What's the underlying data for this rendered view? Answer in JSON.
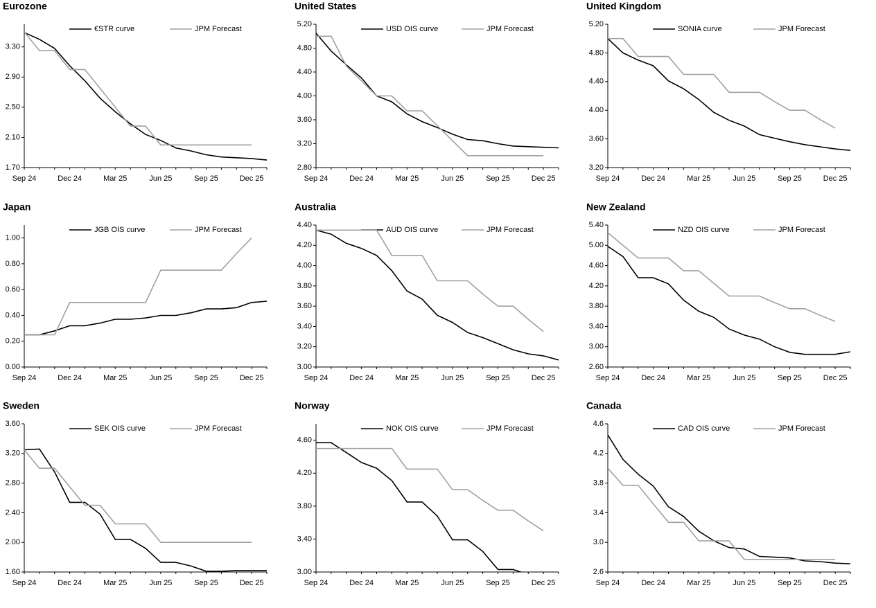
{
  "chart_data": [
    {
      "type": "line",
      "title": "Eurozone",
      "categories": [
        "Sep 24",
        null,
        null,
        "Dec 24",
        null,
        null,
        "Mar 25",
        null,
        null,
        "Jun 25",
        null,
        null,
        "Sep 25",
        null,
        null,
        "Dec 25",
        null
      ],
      "ylim": [
        1.7,
        3.6
      ],
      "yticks": [
        {
          "value": 1.7,
          "label": "1.70"
        },
        {
          "value": 2.1,
          "label": "2.10"
        },
        {
          "value": 2.5,
          "label": "2.50"
        },
        {
          "value": 2.9,
          "label": "2.90"
        },
        {
          "value": 3.3,
          "label": "3.30"
        }
      ],
      "series": [
        {
          "name": "€STR curve",
          "color": "#000000",
          "values": [
            3.49,
            3.4,
            3.28,
            3.05,
            2.85,
            2.62,
            2.44,
            2.28,
            2.14,
            2.06,
            1.96,
            1.92,
            1.87,
            1.84,
            1.83,
            1.82,
            1.8
          ]
        },
        {
          "name": "JPM Forecast",
          "color": "#a0a0a0",
          "values": [
            3.5,
            3.25,
            3.25,
            3.0,
            3.0,
            2.75,
            2.5,
            2.25,
            2.25,
            2.0,
            2.0,
            2.0,
            2.0,
            2.0,
            2.0,
            2.0,
            null
          ]
        }
      ]
    },
    {
      "type": "line",
      "title": "United States",
      "categories": [
        "Sep 24",
        null,
        null,
        "Dec 24",
        null,
        null,
        "Mar 25",
        null,
        null,
        "Jun 25",
        null,
        null,
        "Sep 25",
        null,
        null,
        "Dec 25",
        null
      ],
      "ylim": [
        2.8,
        5.2
      ],
      "yticks": [
        {
          "value": 2.8,
          "label": "2.80"
        },
        {
          "value": 3.2,
          "label": "3.20"
        },
        {
          "value": 3.6,
          "label": "3.60"
        },
        {
          "value": 4.0,
          "label": "4.00"
        },
        {
          "value": 4.4,
          "label": "4.40"
        },
        {
          "value": 4.8,
          "label": "4.80"
        },
        {
          "value": 5.2,
          "label": "5.20"
        }
      ],
      "series": [
        {
          "name": "USD OIS curve",
          "color": "#000000",
          "values": [
            5.05,
            4.75,
            4.52,
            4.3,
            4.0,
            3.9,
            3.7,
            3.57,
            3.47,
            3.36,
            3.27,
            3.25,
            3.2,
            3.16,
            3.15,
            3.14,
            3.13
          ]
        },
        {
          "name": "JPM Forecast",
          "color": "#a0a0a0",
          "values": [
            5.0,
            5.0,
            4.5,
            4.25,
            4.0,
            4.0,
            3.75,
            3.75,
            3.5,
            3.25,
            3.0,
            3.0,
            3.0,
            3.0,
            3.0,
            3.0,
            null
          ]
        }
      ]
    },
    {
      "type": "line",
      "title": "United Kingdom",
      "categories": [
        "Sep 24",
        null,
        null,
        "Dec 24",
        null,
        null,
        "Mar 25",
        null,
        null,
        "Jun 25",
        null,
        null,
        "Sep 25",
        null,
        null,
        "Dec 25",
        null
      ],
      "ylim": [
        3.2,
        5.2
      ],
      "yticks": [
        {
          "value": 3.2,
          "label": "3.20"
        },
        {
          "value": 3.6,
          "label": "3.60"
        },
        {
          "value": 4.0,
          "label": "4.00"
        },
        {
          "value": 4.4,
          "label": "4.40"
        },
        {
          "value": 4.8,
          "label": "4.80"
        },
        {
          "value": 5.2,
          "label": "5.20"
        }
      ],
      "series": [
        {
          "name": "SONIA curve",
          "color": "#000000",
          "values": [
            5.0,
            4.8,
            4.7,
            4.62,
            4.41,
            4.3,
            4.15,
            3.97,
            3.86,
            3.78,
            3.66,
            3.61,
            3.56,
            3.52,
            3.49,
            3.46,
            3.44
          ]
        },
        {
          "name": "JPM Forecast",
          "color": "#a0a0a0",
          "values": [
            5.0,
            5.0,
            4.75,
            4.75,
            4.75,
            4.5,
            4.5,
            4.5,
            4.25,
            4.25,
            4.25,
            4.12,
            4.0,
            4.0,
            3.87,
            3.75,
            null
          ]
        }
      ]
    },
    {
      "type": "line",
      "title": "Japan",
      "categories": [
        "Sep 24",
        null,
        null,
        "Dec 24",
        null,
        null,
        "Mar 25",
        null,
        null,
        "Jun 25",
        null,
        null,
        "Sep 25",
        null,
        null,
        "Dec 25",
        null
      ],
      "ylim": [
        0,
        1.1
      ],
      "yticks": [
        {
          "value": 0,
          "label": "0.00"
        },
        {
          "value": 0.2,
          "label": "0.20"
        },
        {
          "value": 0.4,
          "label": "0.40"
        },
        {
          "value": 0.6,
          "label": "0.60"
        },
        {
          "value": 0.8,
          "label": "0.80"
        },
        {
          "value": 1.0,
          "label": "1.00"
        }
      ],
      "series": [
        {
          "name": "JGB OIS curve",
          "color": "#000000",
          "values": [
            0.25,
            0.25,
            0.28,
            0.32,
            0.32,
            0.34,
            0.37,
            0.37,
            0.38,
            0.4,
            0.4,
            0.42,
            0.45,
            0.45,
            0.46,
            0.5,
            0.51
          ]
        },
        {
          "name": "JPM Forecast",
          "color": "#a0a0a0",
          "values": [
            0.25,
            0.25,
            0.25,
            0.5,
            0.5,
            0.5,
            0.5,
            0.5,
            0.5,
            0.75,
            0.75,
            0.75,
            0.75,
            0.75,
            0.88,
            1.0,
            null
          ]
        }
      ]
    },
    {
      "type": "line",
      "title": "Australia",
      "categories": [
        "Sep 24",
        null,
        null,
        "Dec 24",
        null,
        null,
        "Mar 25",
        null,
        null,
        "Jun 25",
        null,
        null,
        "Sep 25",
        null,
        null,
        "Dec 25",
        null
      ],
      "ylim": [
        3.0,
        4.4
      ],
      "yticks": [
        {
          "value": 3.0,
          "label": "3.00"
        },
        {
          "value": 3.2,
          "label": "3.20"
        },
        {
          "value": 3.4,
          "label": "3.40"
        },
        {
          "value": 3.6,
          "label": "3.60"
        },
        {
          "value": 3.8,
          "label": "3.80"
        },
        {
          "value": 4.0,
          "label": "4.00"
        },
        {
          "value": 4.2,
          "label": "4.20"
        },
        {
          "value": 4.4,
          "label": "4.40"
        }
      ],
      "series": [
        {
          "name": "AUD OIS curve",
          "color": "#000000",
          "values": [
            4.35,
            4.31,
            4.22,
            4.17,
            4.1,
            3.95,
            3.75,
            3.67,
            3.51,
            3.44,
            3.34,
            3.29,
            3.23,
            3.17,
            3.13,
            3.11,
            3.07
          ]
        },
        {
          "name": "JPM Forecast",
          "color": "#a0a0a0",
          "values": [
            4.35,
            4.35,
            4.35,
            4.35,
            4.35,
            4.1,
            4.1,
            4.1,
            3.85,
            3.85,
            3.85,
            3.72,
            3.6,
            3.6,
            3.47,
            3.35,
            null
          ]
        }
      ]
    },
    {
      "type": "line",
      "title": "New Zealand",
      "categories": [
        "Sep 24",
        null,
        null,
        "Dec 24",
        null,
        null,
        "Mar 25",
        null,
        null,
        "Jun 25",
        null,
        null,
        "Sep 25",
        null,
        null,
        "Dec 25",
        null
      ],
      "ylim": [
        2.6,
        5.4
      ],
      "yticks": [
        {
          "value": 2.6,
          "label": "2.60"
        },
        {
          "value": 3.0,
          "label": "3.00"
        },
        {
          "value": 3.4,
          "label": "3.40"
        },
        {
          "value": 3.8,
          "label": "3.80"
        },
        {
          "value": 4.2,
          "label": "4.20"
        },
        {
          "value": 4.6,
          "label": "4.60"
        },
        {
          "value": 5.0,
          "label": "5.00"
        },
        {
          "value": 5.4,
          "label": "5.40"
        }
      ],
      "series": [
        {
          "name": "NZD OIS curve",
          "color": "#000000",
          "values": [
            4.98,
            4.78,
            4.36,
            4.36,
            4.24,
            3.92,
            3.7,
            3.58,
            3.35,
            3.23,
            3.15,
            3.0,
            2.89,
            2.85,
            2.85,
            2.85,
            2.9
          ]
        },
        {
          "name": "JPM Forecast",
          "color": "#a0a0a0",
          "values": [
            5.25,
            5.0,
            4.75,
            4.75,
            4.75,
            4.5,
            4.5,
            4.25,
            4.0,
            4.0,
            4.0,
            3.87,
            3.75,
            3.75,
            3.62,
            3.5,
            null
          ]
        }
      ]
    },
    {
      "type": "line",
      "title": "Sweden",
      "categories": [
        "Sep 24",
        null,
        null,
        "Dec 24",
        null,
        null,
        "Mar 25",
        null,
        null,
        "Jun 25",
        null,
        null,
        "Sep 25",
        null,
        null,
        "Dec 25",
        null
      ],
      "ylim": [
        1.6,
        3.6
      ],
      "yticks": [
        {
          "value": 1.6,
          "label": "1.60"
        },
        {
          "value": 2.0,
          "label": "2.00"
        },
        {
          "value": 2.4,
          "label": "2.40"
        },
        {
          "value": 2.8,
          "label": "2.80"
        },
        {
          "value": 3.2,
          "label": "3.20"
        },
        {
          "value": 3.6,
          "label": "3.60"
        }
      ],
      "series": [
        {
          "name": "SEK OIS curve",
          "color": "#000000",
          "values": [
            3.25,
            3.26,
            2.95,
            2.54,
            2.54,
            2.38,
            2.04,
            2.04,
            1.92,
            1.73,
            1.73,
            1.68,
            1.61,
            1.61,
            1.62,
            1.62,
            1.62
          ]
        },
        {
          "name": "JPM Forecast",
          "color": "#a0a0a0",
          "values": [
            3.25,
            3.0,
            3.0,
            2.75,
            2.5,
            2.5,
            2.25,
            2.25,
            2.25,
            2.0,
            2.0,
            2.0,
            2.0,
            2.0,
            2.0,
            2.0,
            null
          ]
        }
      ]
    },
    {
      "type": "line",
      "title": "Norway",
      "categories": [
        "Sep 24",
        null,
        null,
        "Dec 24",
        null,
        null,
        "Mar 25",
        null,
        null,
        "Jun 25",
        null,
        null,
        "Sep 25",
        null,
        null,
        "Dec 25",
        null
      ],
      "ylim": [
        3.0,
        4.8
      ],
      "yticks": [
        {
          "value": 3.0,
          "label": "3.00"
        },
        {
          "value": 3.4,
          "label": "3.40"
        },
        {
          "value": 3.8,
          "label": "3.80"
        },
        {
          "value": 4.2,
          "label": "4.20"
        },
        {
          "value": 4.6,
          "label": "4.60"
        }
      ],
      "series": [
        {
          "name": "NOK OIS curve",
          "color": "#000000",
          "values": [
            4.57,
            4.57,
            4.45,
            4.33,
            4.26,
            4.11,
            3.85,
            3.85,
            3.68,
            3.39,
            3.39,
            3.25,
            3.03,
            3.03,
            2.97,
            null,
            null
          ]
        },
        {
          "name": "JPM Forecast",
          "color": "#a0a0a0",
          "values": [
            4.5,
            4.5,
            4.5,
            4.5,
            4.5,
            4.5,
            4.25,
            4.25,
            4.25,
            4.0,
            4.0,
            3.87,
            3.75,
            3.75,
            3.62,
            3.5,
            null
          ]
        }
      ]
    },
    {
      "type": "line",
      "title": "Canada",
      "categories": [
        "Sep 24",
        null,
        null,
        "Dec 24",
        null,
        null,
        "Mar 25",
        null,
        null,
        "Jun 25",
        null,
        null,
        "Sep 25",
        null,
        null,
        "Dec 25",
        null
      ],
      "ylim": [
        2.6,
        4.6
      ],
      "yticks": [
        2.6,
        {
          "value": 3.0,
          "label": "3.0"
        },
        3.4,
        3.8,
        4.2,
        4.6
      ],
      "series": [
        {
          "name": "CAD OIS curve",
          "color": "#000000",
          "values": [
            4.45,
            4.12,
            3.92,
            3.76,
            3.48,
            3.35,
            3.15,
            3.02,
            2.93,
            2.91,
            2.81,
            2.8,
            2.79,
            2.75,
            2.74,
            2.72,
            2.71
          ]
        },
        {
          "name": "JPM Forecast",
          "color": "#a0a0a0",
          "values": [
            4.0,
            3.77,
            3.77,
            3.52,
            3.27,
            3.27,
            3.02,
            3.02,
            3.02,
            2.77,
            2.77,
            2.77,
            2.77,
            2.77,
            2.77,
            2.77,
            null
          ]
        }
      ]
    }
  ]
}
